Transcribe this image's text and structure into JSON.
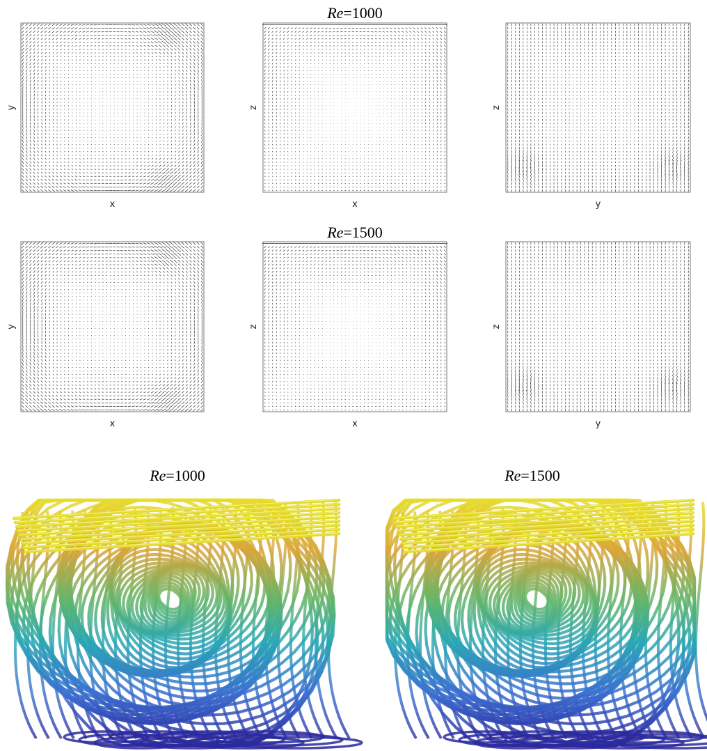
{
  "rows": [
    {
      "title": {
        "symbol": "Re",
        "value": "=1000"
      },
      "panels": [
        {
          "xlabel": "x",
          "ylabel": "y"
        },
        {
          "xlabel": "x",
          "ylabel": "z"
        },
        {
          "xlabel": "y",
          "ylabel": "z"
        }
      ]
    },
    {
      "title": {
        "symbol": "Re",
        "value": "=1500"
      },
      "panels": [
        {
          "xlabel": "x",
          "ylabel": "y"
        },
        {
          "xlabel": "x",
          "ylabel": "z"
        },
        {
          "xlabel": "y",
          "ylabel": "z"
        }
      ]
    }
  ],
  "renders": [
    {
      "title": {
        "symbol": "Re",
        "value": "=1000"
      }
    },
    {
      "title": {
        "symbol": "Re",
        "value": "=1500"
      }
    }
  ]
}
